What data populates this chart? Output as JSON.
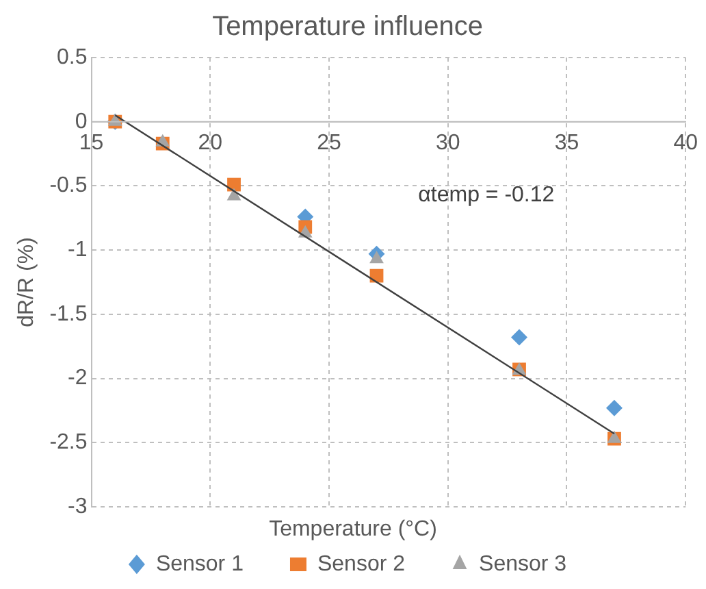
{
  "chart_data": {
    "type": "scatter",
    "title": "Temperature influence",
    "xlabel": "Temperature (°C)",
    "ylabel": "dR/R (%)",
    "xlim": [
      15,
      40
    ],
    "xticks": [
      15,
      20,
      25,
      30,
      35,
      40
    ],
    "ylim": [
      -3,
      0.5
    ],
    "yticks": [
      0.5,
      0,
      -0.5,
      -1,
      -1.5,
      -2,
      -2.5,
      -3
    ],
    "grid": true,
    "legend": "bottom",
    "annotations": [
      "αtemp = -0.12"
    ],
    "x": [
      16,
      18,
      21,
      24,
      27,
      33,
      37
    ],
    "series": [
      {
        "name": "Sensor 1",
        "color": "#5b9bd5",
        "marker": "diamond",
        "values": [
          0,
          null,
          null,
          -0.74,
          -1.03,
          -1.68,
          -2.23
        ]
      },
      {
        "name": "Sensor 2",
        "color": "#ed7d31",
        "marker": "square",
        "values": [
          0,
          -0.17,
          -0.49,
          -0.82,
          -1.2,
          -1.93,
          -2.47
        ]
      },
      {
        "name": "Sensor 3",
        "color": "#a5a5a5",
        "marker": "triangle",
        "values": [
          0,
          -0.16,
          -0.58,
          -0.87,
          -1.07,
          -1.94,
          -2.47
        ]
      },
      {
        "type": "line",
        "color": "#404040",
        "marker": "none",
        "x": [
          16,
          37
        ],
        "values": [
          0.05,
          -2.43
        ]
      }
    ]
  }
}
